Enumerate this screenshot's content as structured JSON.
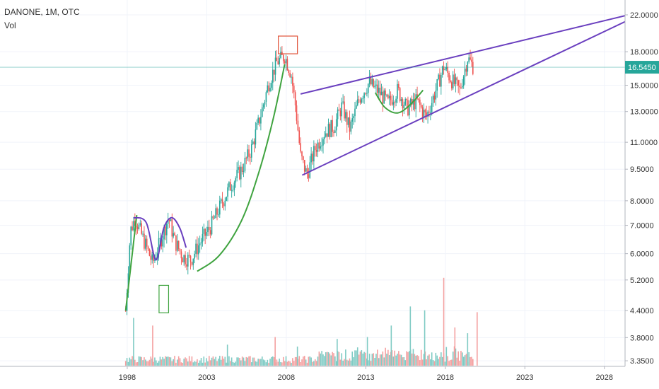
{
  "header": {
    "symbol_line": "DANONE, 1M, OTC",
    "indicator": "Vol"
  },
  "chart_data": {
    "type": "candlestick",
    "y_scale": "log",
    "ylim": [
      3.3,
      22.6
    ],
    "xlim": [
      1990.0,
      2029.3
    ],
    "y_ticks": [
      "22.0000",
      "18.0000",
      "15.0000",
      "13.0000",
      "11.0000",
      "9.5000",
      "8.0000",
      "7.0000",
      "6.0000",
      "5.2000",
      "4.4000",
      "3.8000",
      "3.3500"
    ],
    "x_ticks": [
      "1998",
      "2003",
      "2008",
      "2013",
      "2018",
      "2023",
      "2028"
    ],
    "last_price": {
      "label": "16.5450",
      "value": 16.545
    },
    "grid": true,
    "colors": {
      "up": "#26a69a",
      "down": "#ef5350",
      "vol_up": "#80cbc4",
      "vol_down": "#f4a0a0",
      "last_price": "#26a69a",
      "wedge": "#6a3fbf",
      "green_curve": "#3fa33f",
      "purple_curve": "#6a3fbf",
      "box_red": "#e0533a",
      "box_green": "#3fa33f"
    },
    "price_path": [
      [
        1997.9,
        4.4
      ],
      [
        1998.2,
        6.8
      ],
      [
        1998.5,
        7.3
      ],
      [
        1999.0,
        6.5
      ],
      [
        1999.6,
        5.7
      ],
      [
        2000.2,
        6.6
      ],
      [
        2000.6,
        7.3
      ],
      [
        2001.0,
        6.4
      ],
      [
        2001.5,
        5.9
      ],
      [
        2002.0,
        5.8
      ],
      [
        2002.6,
        6.4
      ],
      [
        2003.2,
        6.9
      ],
      [
        2003.8,
        7.7
      ],
      [
        2004.5,
        8.7
      ],
      [
        2005.2,
        9.5
      ],
      [
        2005.8,
        10.6
      ],
      [
        2006.4,
        12.8
      ],
      [
        2006.9,
        15.2
      ],
      [
        2007.4,
        17.0
      ],
      [
        2007.9,
        17.6
      ],
      [
        2008.3,
        16.0
      ],
      [
        2008.6,
        13.2
      ],
      [
        2008.9,
        10.2
      ],
      [
        2009.3,
        9.2
      ],
      [
        2009.8,
        10.6
      ],
      [
        2010.4,
        11.6
      ],
      [
        2011.0,
        12.0
      ],
      [
        2011.5,
        13.4
      ],
      [
        2012.0,
        11.8
      ],
      [
        2012.6,
        14.0
      ],
      [
        2013.2,
        15.2
      ],
      [
        2013.8,
        14.5
      ],
      [
        2014.4,
        13.6
      ],
      [
        2015.0,
        14.6
      ],
      [
        2015.6,
        13.2
      ],
      [
        2016.2,
        13.8
      ],
      [
        2016.8,
        12.6
      ],
      [
        2017.4,
        14.6
      ],
      [
        2017.9,
        16.6
      ],
      [
        2018.4,
        15.4
      ],
      [
        2018.9,
        14.6
      ],
      [
        2019.4,
        17.4
      ],
      [
        2019.8,
        16.5
      ]
    ],
    "volume_spikes": [
      [
        2015.8,
        0.62
      ],
      [
        2017.9,
        0.92
      ],
      [
        2016.7,
        0.58
      ],
      [
        2014.6,
        0.42
      ],
      [
        2020.0,
        0.56
      ],
      [
        2019.4,
        0.34
      ],
      [
        2011.2,
        0.28
      ],
      [
        2018.6,
        0.4
      ],
      [
        2013.1,
        0.3
      ],
      [
        2004.3,
        0.22
      ],
      [
        2007.3,
        0.3
      ],
      [
        2008.7,
        0.2
      ],
      [
        1998.4,
        0.5
      ],
      [
        1999.6,
        0.42
      ]
    ],
    "annotations": {
      "wedge_upper": [
        [
          2008.9,
          14.3
        ],
        [
          2029.3,
          21.9
        ]
      ],
      "wedge_lower": [
        [
          2009.0,
          9.2
        ],
        [
          2029.3,
          21.2
        ]
      ],
      "green_left": [
        [
          1997.9,
          4.4
        ],
        [
          1998.6,
          7.4
        ]
      ],
      "green_main": [
        [
          2002.4,
          5.45
        ],
        [
          2003.8,
          5.95
        ],
        [
          2005.2,
          7.2
        ],
        [
          2006.3,
          9.4
        ],
        [
          2007.2,
          12.6
        ],
        [
          2007.9,
          16.8
        ]
      ],
      "green_cup": [
        [
          2013.6,
          14.4
        ],
        [
          2014.2,
          13.3
        ],
        [
          2015.0,
          12.9
        ],
        [
          2015.8,
          13.5
        ],
        [
          2016.6,
          14.6
        ]
      ],
      "purple_double": [
        [
          1998.4,
          7.3
        ],
        [
          1999.2,
          7.1
        ],
        [
          1999.8,
          5.8
        ],
        [
          2000.3,
          6.9
        ],
        [
          2000.8,
          7.3
        ],
        [
          2001.3,
          6.9
        ],
        [
          2001.7,
          6.2
        ]
      ],
      "box_top": [
        2007.5,
        2008.7,
        17.8,
        19.6
      ],
      "box_bottom": [
        2000.0,
        2000.6,
        4.35,
        5.05
      ]
    }
  }
}
